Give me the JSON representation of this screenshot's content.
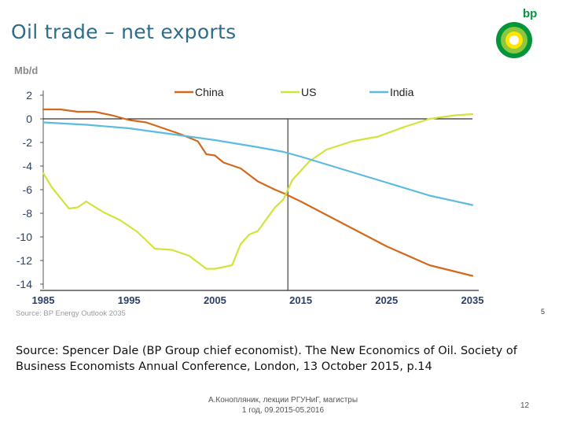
{
  "slide": {
    "title": "Oil trade – net exports",
    "brand": "bp",
    "source_small": "Source: BP Energy Outlook 2035",
    "page_mark": "5",
    "source_big": "Source: Spencer Dale (BP Group chief economist). The New Economics of Oil. Society of Business Economists Annual Conference, London, 13 October 2015, p.14",
    "footer_line1": "А.Конопляник, лекции РГУНиГ, магистры",
    "footer_line2": "1 год, 09.2015-05.2016",
    "slide_number": "12"
  },
  "colors": {
    "title": "#2e6c8a",
    "bp_green": "#009639",
    "bp_yellow": "#ffe600",
    "china": "#d2691e",
    "us": "#d4e33a",
    "india": "#5bbbe0",
    "axis_text": "#2a3f6b"
  },
  "chart_data": {
    "type": "line",
    "ylabel": "Mb/d",
    "xlim": [
      1985,
      2035
    ],
    "ylim": [
      -14,
      2
    ],
    "x_ticks": [
      1985,
      1995,
      2005,
      2015,
      2025,
      2035
    ],
    "y_ticks": [
      2,
      0,
      -2,
      -4,
      -6,
      -8,
      -10,
      -12,
      -14
    ],
    "x_tick_labels": [
      "1985",
      "1995",
      "2005",
      "2015",
      "2025",
      "2035"
    ],
    "y_tick_labels": [
      "2",
      "0",
      "-2",
      "-4",
      "-6",
      "-8",
      "-10",
      "-12",
      "-14"
    ],
    "vertical_marker_x": 2013.5,
    "legend_position": "top",
    "series": [
      {
        "name": "China",
        "color": "#d2691e",
        "points": [
          [
            1985,
            0.8
          ],
          [
            1987,
            0.8
          ],
          [
            1989,
            0.6
          ],
          [
            1991,
            0.6
          ],
          [
            1993,
            0.3
          ],
          [
            1995,
            -0.1
          ],
          [
            1997,
            -0.3
          ],
          [
            1999,
            -0.8
          ],
          [
            2001,
            -1.3
          ],
          [
            2003,
            -1.9
          ],
          [
            2004,
            -3.0
          ],
          [
            2005,
            -3.1
          ],
          [
            2006,
            -3.7
          ],
          [
            2008,
            -4.2
          ],
          [
            2010,
            -5.3
          ],
          [
            2012,
            -6.0
          ],
          [
            2013,
            -6.3
          ],
          [
            2015,
            -7.0
          ],
          [
            2020,
            -8.9
          ],
          [
            2025,
            -10.8
          ],
          [
            2030,
            -12.4
          ],
          [
            2035,
            -13.3
          ]
        ]
      },
      {
        "name": "US",
        "color": "#d4e33a",
        "points": [
          [
            1985,
            -4.6
          ],
          [
            1986,
            -5.8
          ],
          [
            1988,
            -7.6
          ],
          [
            1989,
            -7.5
          ],
          [
            1990,
            -7.0
          ],
          [
            1992,
            -7.9
          ],
          [
            1994,
            -8.6
          ],
          [
            1996,
            -9.6
          ],
          [
            1998,
            -11.0
          ],
          [
            2000,
            -11.1
          ],
          [
            2002,
            -11.6
          ],
          [
            2004,
            -12.7
          ],
          [
            2005,
            -12.7
          ],
          [
            2007,
            -12.4
          ],
          [
            2008,
            -10.6
          ],
          [
            2009,
            -9.8
          ],
          [
            2010,
            -9.5
          ],
          [
            2011,
            -8.5
          ],
          [
            2012,
            -7.5
          ],
          [
            2013,
            -6.8
          ],
          [
            2014,
            -5.2
          ],
          [
            2016,
            -3.6
          ],
          [
            2018,
            -2.6
          ],
          [
            2021,
            -1.9
          ],
          [
            2024,
            -1.5
          ],
          [
            2027,
            -0.7
          ],
          [
            2030,
            0.0
          ],
          [
            2033,
            0.3
          ],
          [
            2035,
            0.4
          ]
        ]
      },
      {
        "name": "India",
        "color": "#5bbbe0",
        "points": [
          [
            1985,
            -0.3
          ],
          [
            1990,
            -0.5
          ],
          [
            1995,
            -0.8
          ],
          [
            2000,
            -1.3
          ],
          [
            2005,
            -1.8
          ],
          [
            2010,
            -2.4
          ],
          [
            2013,
            -2.8
          ],
          [
            2015,
            -3.2
          ],
          [
            2020,
            -4.3
          ],
          [
            2025,
            -5.4
          ],
          [
            2030,
            -6.5
          ],
          [
            2035,
            -7.3
          ]
        ]
      }
    ]
  }
}
